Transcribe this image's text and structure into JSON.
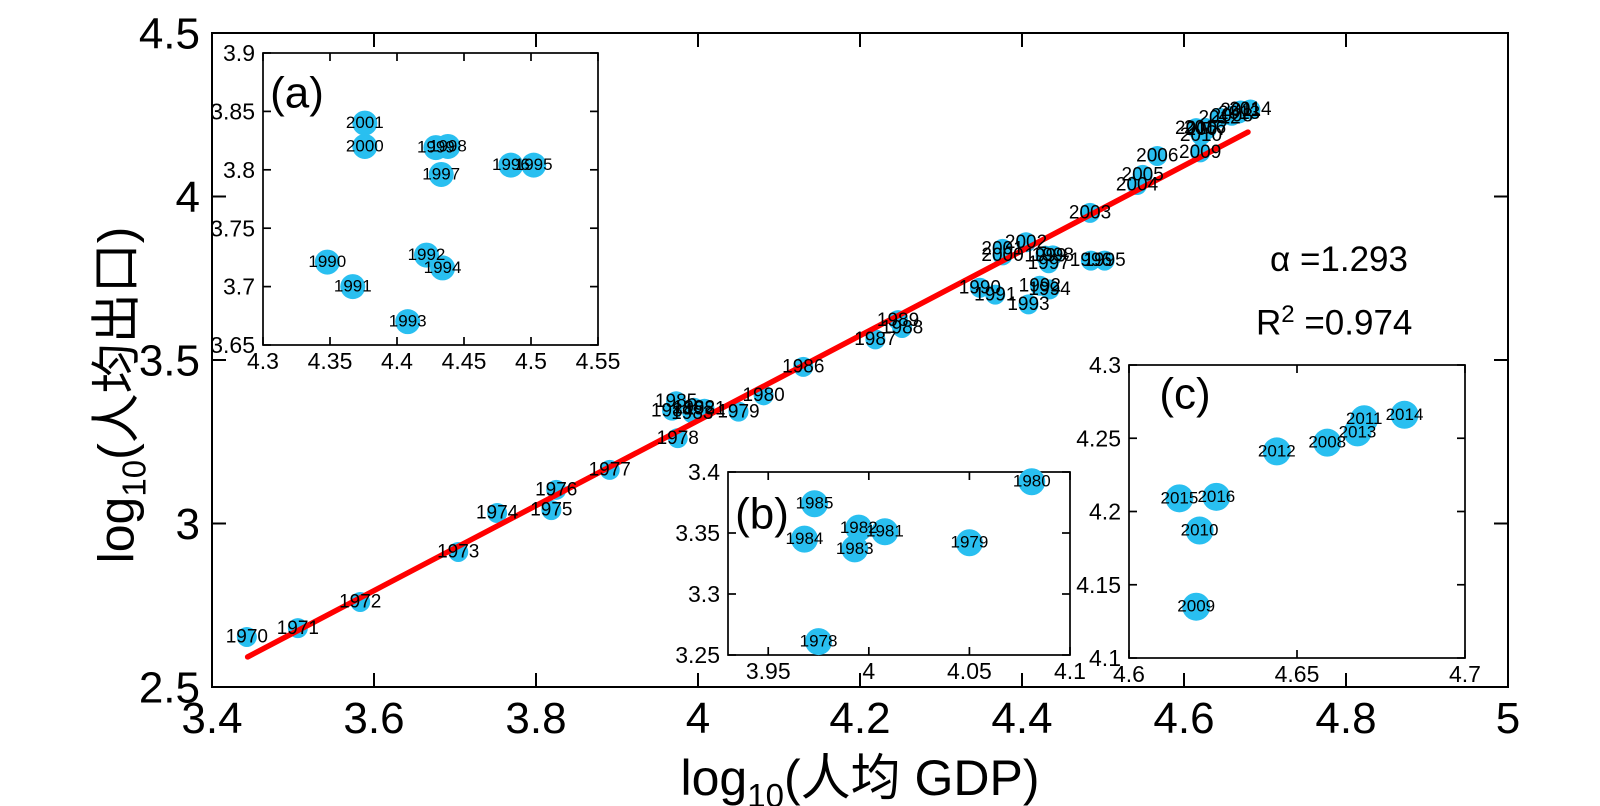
{
  "figure": {
    "x_axis_label": {
      "log": "log",
      "sub": "10",
      "rest": "(人均 GDP)"
    },
    "y_axis_label": {
      "log": "log",
      "sub": "10",
      "rest": "(人均出口)"
    },
    "annotation": {
      "alpha_text": "α =1.293",
      "r2_base": "R",
      "r2_sup": "2",
      "r2_rest": " =0.974"
    }
  },
  "colors": {
    "marker": "#29BFF0",
    "fit_line": "#FF0000",
    "axis": "#000000",
    "text": "#000000",
    "background": "#FFFFFF"
  },
  "chart_data": [
    {
      "id": "main",
      "type": "scatter",
      "xlabel": "log10(人均 GDP)",
      "ylabel": "log10(人均出口)",
      "xlim": [
        3.4,
        5
      ],
      "ylim": [
        2.5,
        4.5
      ],
      "xticks": [
        3.4,
        3.6,
        3.8,
        4,
        4.2,
        4.4,
        4.6,
        4.8,
        5
      ],
      "xtick_labels": [
        "3.4",
        "3.6",
        "3.8",
        "4",
        "4.2",
        "4.4",
        "4.6",
        "4.8",
        "5"
      ],
      "yticks": [
        2.5,
        3,
        3.5,
        4,
        4.5
      ],
      "ytick_labels": [
        "2.5",
        "3",
        "3.5",
        "4",
        "4.5"
      ],
      "grid": false,
      "fit_line": {
        "x": [
          3.444,
          4.679
        ],
        "y": [
          2.592,
          4.197
        ],
        "alpha": 1.293,
        "r_squared": 0.974
      },
      "points": [
        [
          "1970",
          3.443,
          2.653
        ],
        [
          "1971",
          3.506,
          2.68
        ],
        [
          "1972",
          3.583,
          2.76
        ],
        [
          "1973",
          3.704,
          2.913
        ],
        [
          "1974",
          3.752,
          3.032
        ],
        [
          "1975",
          3.819,
          3.041
        ],
        [
          "1976",
          3.825,
          3.103
        ],
        [
          "1977",
          3.891,
          3.164
        ],
        [
          "1978",
          3.975,
          3.261
        ],
        [
          "1979",
          4.05,
          3.342
        ],
        [
          "1980",
          4.081,
          3.392
        ],
        [
          "1981",
          4.008,
          3.351
        ],
        [
          "1982",
          3.995,
          3.354
        ],
        [
          "1983",
          3.993,
          3.337
        ],
        [
          "1984",
          3.968,
          3.345
        ],
        [
          "1985",
          3.973,
          3.374
        ],
        [
          "1986",
          4.13,
          3.479
        ],
        [
          "1987",
          4.219,
          3.563
        ],
        [
          "1988",
          4.252,
          3.598
        ],
        [
          "1989",
          4.247,
          3.622
        ],
        [
          "1990",
          4.348,
          3.721
        ],
        [
          "1991",
          4.367,
          3.7
        ],
        [
          "1992",
          4.422,
          3.727
        ],
        [
          "1993",
          4.408,
          3.67
        ],
        [
          "1994",
          4.434,
          3.716
        ],
        [
          "1995",
          4.502,
          3.804
        ],
        [
          "1996",
          4.485,
          3.804
        ],
        [
          "1997",
          4.433,
          3.796
        ],
        [
          "1998",
          4.438,
          3.82
        ],
        [
          "1999",
          4.429,
          3.819
        ],
        [
          "2000",
          4.376,
          3.82
        ],
        [
          "2001",
          4.376,
          3.84
        ],
        [
          "2002",
          4.405,
          3.86
        ],
        [
          "2003",
          4.484,
          3.95
        ],
        [
          "2004",
          4.542,
          4.035
        ],
        [
          "2005",
          4.549,
          4.066
        ],
        [
          "2006",
          4.567,
          4.124
        ],
        [
          "2007",
          4.628,
          4.205
        ],
        [
          "2008",
          4.659,
          4.247
        ],
        [
          "2009",
          4.62,
          4.135
        ],
        [
          "2010",
          4.621,
          4.187
        ],
        [
          "2011",
          4.67,
          4.263
        ],
        [
          "2012",
          4.644,
          4.241
        ],
        [
          "2013",
          4.668,
          4.254
        ],
        [
          "2014",
          4.682,
          4.266
        ],
        [
          "2015",
          4.615,
          4.209
        ],
        [
          "2016",
          4.626,
          4.21
        ]
      ]
    },
    {
      "id": "a",
      "type": "scatter",
      "panel_label": "(a)",
      "xlim": [
        4.3,
        4.55
      ],
      "ylim": [
        3.65,
        3.9
      ],
      "xticks": [
        4.3,
        4.35,
        4.4,
        4.45,
        4.5,
        4.55
      ],
      "xtick_labels": [
        "4.3",
        "4.35",
        "4.4",
        "4.45",
        "4.5",
        "4.55"
      ],
      "yticks": [
        3.65,
        3.7,
        3.75,
        3.8,
        3.85,
        3.9
      ],
      "ytick_labels": [
        "3.65",
        "3.7",
        "3.75",
        "3.8",
        "3.85",
        "3.9"
      ],
      "grid": false,
      "points": [
        [
          "1990",
          4.348,
          3.721
        ],
        [
          "1991",
          4.367,
          3.7
        ],
        [
          "1992",
          4.422,
          3.727
        ],
        [
          "1993",
          4.408,
          3.67
        ],
        [
          "1994",
          4.434,
          3.716
        ],
        [
          "1995",
          4.502,
          3.804
        ],
        [
          "1996",
          4.485,
          3.804
        ],
        [
          "1997",
          4.433,
          3.796
        ],
        [
          "1998",
          4.438,
          3.82
        ],
        [
          "1999",
          4.429,
          3.819
        ],
        [
          "2000",
          4.376,
          3.82
        ],
        [
          "2001",
          4.376,
          3.84
        ]
      ]
    },
    {
      "id": "b",
      "type": "scatter",
      "panel_label": "(b)",
      "xlim": [
        3.93,
        4.1
      ],
      "ylim": [
        3.25,
        3.4
      ],
      "xticks": [
        3.95,
        4,
        4.05,
        4.1
      ],
      "xtick_labels": [
        "3.95",
        "4",
        "4.05",
        "4.1"
      ],
      "yticks": [
        3.25,
        3.3,
        3.35,
        3.4
      ],
      "ytick_labels": [
        "3.25",
        "3.3",
        "3.35",
        "3.4"
      ],
      "grid": false,
      "points": [
        [
          "1978",
          3.975,
          3.261
        ],
        [
          "1979",
          4.05,
          3.342
        ],
        [
          "1980",
          4.081,
          3.392
        ],
        [
          "1981",
          4.008,
          3.351
        ],
        [
          "1982",
          3.995,
          3.354
        ],
        [
          "1983",
          3.993,
          3.337
        ],
        [
          "1984",
          3.968,
          3.345
        ],
        [
          "1985",
          3.973,
          3.374
        ]
      ]
    },
    {
      "id": "c",
      "type": "scatter",
      "panel_label": "(c)",
      "xlim": [
        4.6,
        4.7
      ],
      "ylim": [
        4.1,
        4.3
      ],
      "xticks": [
        4.6,
        4.65,
        4.7
      ],
      "xtick_labels": [
        "4.6",
        "4.65",
        "4.7"
      ],
      "yticks": [
        4.1,
        4.15,
        4.2,
        4.25,
        4.3
      ],
      "ytick_labels": [
        "4.1",
        "4.15",
        "4.2",
        "4.25",
        "4.3"
      ],
      "grid": false,
      "points": [
        [
          "2008",
          4.659,
          4.247
        ],
        [
          "2009",
          4.62,
          4.135
        ],
        [
          "2010",
          4.621,
          4.187
        ],
        [
          "2011",
          4.67,
          4.263
        ],
        [
          "2012",
          4.644,
          4.241
        ],
        [
          "2013",
          4.668,
          4.254
        ],
        [
          "2014",
          4.682,
          4.266
        ],
        [
          "2015",
          4.615,
          4.209
        ],
        [
          "2016",
          4.626,
          4.21
        ]
      ]
    }
  ]
}
